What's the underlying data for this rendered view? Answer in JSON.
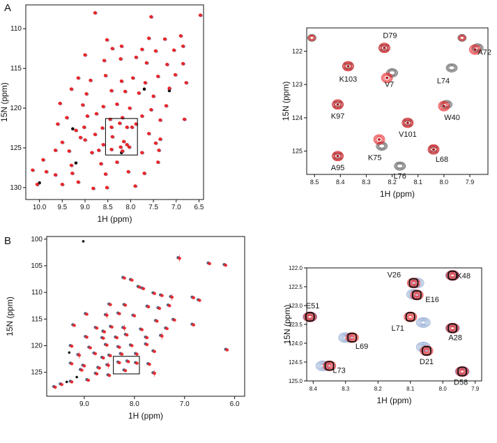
{
  "figure": {
    "panel_a_label": "A",
    "panel_b_label": "B"
  },
  "chart_data": [
    {
      "id": "A-full",
      "type": "scatter",
      "xlabel": "1H (ppm)",
      "ylabel": "15N (ppm)",
      "xlim": [
        10.3,
        6.4
      ],
      "ylim": [
        107,
        131.5
      ],
      "xticks": [
        "10.0",
        "9.5",
        "9.0",
        "8.5",
        "8.0",
        "7.5",
        "7.0",
        "6.5"
      ],
      "yticks": [
        "110",
        "115",
        "120",
        "125",
        "130"
      ],
      "grid": false,
      "colors": {
        "red": "#e8262a",
        "black": "#111111",
        "blue": "#2f4f8f"
      },
      "zoom_box": {
        "x": [
          8.55,
          7.85
        ],
        "y": [
          121.3,
          125.9
        ]
      },
      "peaks": [
        [
          8.78,
          108.0
        ],
        [
          7.55,
          108.5
        ],
        [
          6.47,
          108.3
        ],
        [
          8.52,
          111.4
        ],
        [
          7.6,
          111.2
        ],
        [
          7.25,
          111.3
        ],
        [
          6.9,
          110.9
        ],
        [
          8.4,
          112.5
        ],
        [
          8.2,
          112.2
        ],
        [
          7.75,
          112.6
        ],
        [
          7.45,
          112.8
        ],
        [
          7.05,
          112.7
        ],
        [
          6.85,
          112.2
        ],
        [
          9.0,
          113.3
        ],
        [
          8.58,
          114.0
        ],
        [
          8.22,
          113.8
        ],
        [
          7.88,
          113.6
        ],
        [
          7.65,
          114.3
        ],
        [
          7.2,
          114.5
        ],
        [
          6.85,
          114.4
        ],
        [
          9.15,
          116.2
        ],
        [
          8.88,
          116.5
        ],
        [
          8.55,
          115.9
        ],
        [
          8.2,
          116.6
        ],
        [
          7.95,
          116.2
        ],
        [
          7.68,
          116.8
        ],
        [
          7.4,
          116.0
        ],
        [
          7.02,
          115.8
        ],
        [
          6.78,
          116.8
        ],
        [
          9.3,
          117.6
        ],
        [
          8.97,
          118.2
        ],
        [
          8.42,
          117.8
        ],
        [
          8.12,
          117.9
        ],
        [
          7.82,
          118.1
        ],
        [
          7.5,
          118.5
        ],
        [
          7.15,
          117.5
        ],
        [
          9.55,
          119.4
        ],
        [
          9.05,
          119.6
        ],
        [
          8.6,
          119.8
        ],
        [
          8.3,
          119.5
        ],
        [
          8.02,
          120.0
        ],
        [
          7.55,
          120.2
        ],
        [
          7.22,
          119.7
        ],
        [
          9.4,
          121.2
        ],
        [
          8.95,
          121.0
        ],
        [
          8.75,
          120.7
        ],
        [
          8.45,
          121.4
        ],
        [
          8.18,
          121.2
        ],
        [
          7.75,
          121.0
        ],
        [
          7.35,
          121.5
        ],
        [
          6.82,
          121.4
        ],
        [
          9.6,
          122.0
        ],
        [
          9.2,
          122.8
        ],
        [
          9.02,
          122.4
        ],
        [
          8.62,
          122.5
        ],
        [
          8.42,
          122.4
        ],
        [
          8.24,
          121.9
        ],
        [
          8.08,
          122.4
        ],
        [
          7.97,
          122.4
        ],
        [
          7.88,
          122.0
        ],
        [
          9.1,
          123.7
        ],
        [
          8.78,
          123.3
        ],
        [
          8.4,
          123.6
        ],
        [
          8.22,
          124.9
        ],
        [
          8.15,
          124.2
        ],
        [
          8.03,
          124.9
        ],
        [
          7.6,
          123.2
        ],
        [
          7.35,
          123.9
        ],
        [
          9.5,
          124.3
        ],
        [
          9.0,
          124.0
        ],
        [
          8.6,
          124.6
        ],
        [
          8.42,
          125.2
        ],
        [
          8.18,
          125.4
        ],
        [
          8.08,
          124.6
        ],
        [
          7.45,
          124.4
        ],
        [
          9.65,
          125.3
        ],
        [
          9.35,
          125.4
        ],
        [
          8.85,
          125.6
        ],
        [
          8.7,
          125.3
        ],
        [
          7.75,
          125.6
        ],
        [
          7.38,
          125.3
        ],
        [
          9.92,
          126.5
        ],
        [
          9.3,
          127.2
        ],
        [
          8.65,
          127.0
        ],
        [
          8.3,
          126.8
        ],
        [
          7.4,
          126.8
        ],
        [
          10.15,
          127.8
        ],
        [
          9.85,
          128.0
        ],
        [
          9.65,
          128.4
        ],
        [
          9.28,
          128.2
        ],
        [
          8.55,
          128.3
        ],
        [
          8.05,
          128.0
        ],
        [
          7.7,
          128.2
        ],
        [
          10.05,
          129.6
        ],
        [
          9.5,
          129.6
        ],
        [
          9.15,
          129.3
        ],
        [
          8.82,
          130.1
        ],
        [
          8.52,
          130.0
        ],
        [
          7.9,
          129.8
        ]
      ],
      "black_peaks": [
        [
          9.27,
          122.6
        ],
        [
          7.7,
          117.6
        ],
        [
          7.15,
          117.8
        ],
        [
          9.2,
          126.9
        ],
        [
          8.2,
          125.6
        ],
        [
          10.0,
          129.4
        ]
      ]
    },
    {
      "id": "A-zoom",
      "type": "scatter",
      "xlabel": "1H (ppm)",
      "ylabel": "15N (ppm)",
      "xlim": [
        8.53,
        7.83
      ],
      "ylim": [
        121.3,
        125.7
      ],
      "xticks": [
        "8.5",
        "8.4",
        "8.3",
        "8.2",
        "8.1",
        "8.0",
        "7.9"
      ],
      "yticks": [
        "122",
        "123",
        "124",
        "125"
      ],
      "grid": false,
      "peaks": [
        {
          "label": "D79",
          "x": 8.23,
          "y": 121.9,
          "r": {
            "x": 8.23,
            "y": 121.9
          }
        },
        {
          "label": "A72",
          "x": 7.87,
          "y": 121.9,
          "r": {
            "x": 7.88,
            "y": 121.95
          }
        },
        {
          "label": "K103",
          "x": 8.37,
          "y": 122.45,
          "r": {
            "x": 8.37,
            "y": 122.45
          }
        },
        {
          "label": "V7",
          "x": 8.2,
          "y": 122.65,
          "r": {
            "x": 8.22,
            "y": 122.8
          }
        },
        {
          "label": "L74",
          "x": 7.97,
          "y": 122.5,
          "r": null
        },
        {
          "label": "K97",
          "x": 8.41,
          "y": 123.6,
          "r": {
            "x": 8.41,
            "y": 123.6
          }
        },
        {
          "label": "W40",
          "x": 7.99,
          "y": 123.6,
          "r": {
            "x": 8.0,
            "y": 123.65
          }
        },
        {
          "label": "V101",
          "x": 8.14,
          "y": 124.15,
          "r": {
            "x": 8.14,
            "y": 124.15
          }
        },
        {
          "label": "K75",
          "x": 8.24,
          "y": 124.85,
          "r": {
            "x": 8.25,
            "y": 124.65
          }
        },
        {
          "label": "L68",
          "x": 8.04,
          "y": 124.95,
          "r": {
            "x": 8.04,
            "y": 124.95
          }
        },
        {
          "label": "L76",
          "x": 8.17,
          "y": 125.45,
          "r": null
        },
        {
          "label": "A95",
          "x": 8.41,
          "y": 125.15,
          "r": {
            "x": 8.41,
            "y": 125.15
          }
        }
      ],
      "unlabeled_peaks": [
        {
          "x": 8.51,
          "y": 121.6
        },
        {
          "x": 7.93,
          "y": 121.6
        }
      ]
    },
    {
      "id": "B-full",
      "type": "scatter",
      "xlabel": "1H (ppm)",
      "ylabel": "15N (ppm)",
      "xlim": [
        9.75,
        5.8
      ],
      "ylim": [
        99.5,
        129.5
      ],
      "xticks": [
        "9.0",
        "8.0",
        "7.0",
        "6.0"
      ],
      "yticks": [
        "100",
        "105",
        "110",
        "115",
        "120",
        "125"
      ],
      "grid": false,
      "zoom_box": {
        "x": [
          8.42,
          7.9
        ],
        "y": [
          122.0,
          125.3
        ]
      },
      "peaks": [
        [
          7.1,
          103.6
        ],
        [
          6.5,
          104.6
        ],
        [
          6.18,
          104.9
        ],
        [
          8.2,
          107.3
        ],
        [
          8.05,
          107.7
        ],
        [
          7.9,
          109.0
        ],
        [
          7.82,
          109.3
        ],
        [
          7.6,
          110.2
        ],
        [
          7.45,
          110.6
        ],
        [
          7.25,
          110.9
        ],
        [
          6.82,
          111.0
        ],
        [
          6.7,
          111.5
        ],
        [
          8.48,
          112.3
        ],
        [
          8.18,
          112.4
        ],
        [
          7.72,
          112.7
        ],
        [
          7.5,
          113.0
        ],
        [
          7.3,
          112.5
        ],
        [
          8.95,
          114.1
        ],
        [
          8.55,
          114.3
        ],
        [
          8.3,
          114.0
        ],
        [
          8.0,
          114.4
        ],
        [
          7.55,
          115.4
        ],
        [
          7.2,
          115.2
        ],
        [
          9.2,
          116.2
        ],
        [
          8.75,
          116.7
        ],
        [
          8.6,
          117.4
        ],
        [
          8.45,
          116.5
        ],
        [
          8.2,
          116.7
        ],
        [
          7.85,
          117.0
        ],
        [
          7.35,
          116.8
        ],
        [
          6.82,
          116.1
        ],
        [
          8.95,
          118.4
        ],
        [
          8.62,
          118.6
        ],
        [
          8.35,
          118.5
        ],
        [
          8.15,
          118.0
        ],
        [
          7.75,
          118.5
        ],
        [
          7.45,
          118.2
        ],
        [
          9.25,
          120.1
        ],
        [
          8.88,
          120.4
        ],
        [
          8.55,
          119.9
        ],
        [
          8.3,
          120.3
        ],
        [
          8.05,
          120.0
        ],
        [
          7.75,
          119.8
        ],
        [
          7.6,
          121.1
        ],
        [
          6.15,
          120.8
        ],
        [
          9.1,
          121.8
        ],
        [
          8.78,
          121.5
        ],
        [
          8.62,
          122.3
        ],
        [
          8.48,
          121.9
        ],
        [
          8.25,
          121.6
        ],
        [
          7.95,
          121.6
        ],
        [
          9.25,
          123.4
        ],
        [
          9.0,
          123.8
        ],
        [
          8.7,
          124.2
        ],
        [
          8.52,
          123.7
        ],
        [
          8.3,
          123.2
        ],
        [
          8.12,
          123.0
        ],
        [
          7.95,
          123.3
        ],
        [
          7.7,
          123.5
        ],
        [
          9.05,
          124.6
        ],
        [
          8.75,
          125.3
        ],
        [
          8.5,
          125.6
        ],
        [
          8.18,
          124.7
        ],
        [
          7.6,
          125.2
        ],
        [
          9.58,
          127.8
        ],
        [
          9.45,
          127.3
        ],
        [
          9.25,
          126.8
        ],
        [
          8.92,
          126.5
        ]
      ],
      "black_peaks": [
        [
          9.02,
          100.4
        ],
        [
          9.3,
          121.3
        ],
        [
          9.15,
          125.9
        ],
        [
          9.35,
          126.8
        ]
      ]
    },
    {
      "id": "B-zoom",
      "type": "scatter",
      "xlabel": "1H (ppm)",
      "ylabel": "15N (ppm)",
      "xlim": [
        8.42,
        7.88
      ],
      "ylim": [
        122.0,
        125.0
      ],
      "xticks": [
        "8.4",
        "8.3",
        "8.2",
        "8.1",
        "8.0",
        "7.9"
      ],
      "yticks": [
        "122.0",
        "122.5",
        "123.0",
        "123.5",
        "124.0",
        "124.5",
        "125.0"
      ],
      "grid": false,
      "peaks": [
        {
          "label": "V26",
          "x": 8.09,
          "y": 122.4,
          "shift": {
            "x": 8.08,
            "y": 122.4
          }
        },
        {
          "label": "E16",
          "x": 8.08,
          "y": 122.72,
          "shift": {
            "x": 8.09,
            "y": 122.7
          }
        },
        {
          "label": "K48",
          "x": 7.97,
          "y": 122.2,
          "shift": {
            "x": 7.97,
            "y": 122.2
          }
        },
        {
          "label": "E51",
          "x": 8.41,
          "y": 123.3,
          "shift": {
            "x": 8.41,
            "y": 123.3
          }
        },
        {
          "label": "L71",
          "x": 8.1,
          "y": 123.3,
          "shift": {
            "x": 8.06,
            "y": 123.45
          }
        },
        {
          "label": "A28",
          "x": 7.97,
          "y": 123.6,
          "shift": {
            "x": 7.97,
            "y": 123.6
          }
        },
        {
          "label": "L69",
          "x": 8.28,
          "y": 123.85,
          "shift": {
            "x": 8.3,
            "y": 123.85
          }
        },
        {
          "label": "D21",
          "x": 8.05,
          "y": 124.2,
          "shift": {
            "x": 8.06,
            "y": 124.1
          }
        },
        {
          "label": "L73",
          "x": 8.35,
          "y": 124.6,
          "shift": {
            "x": 8.37,
            "y": 124.6
          }
        },
        {
          "label": "D58",
          "x": 7.94,
          "y": 124.75,
          "shift": {
            "x": 7.94,
            "y": 124.75
          }
        }
      ]
    }
  ]
}
